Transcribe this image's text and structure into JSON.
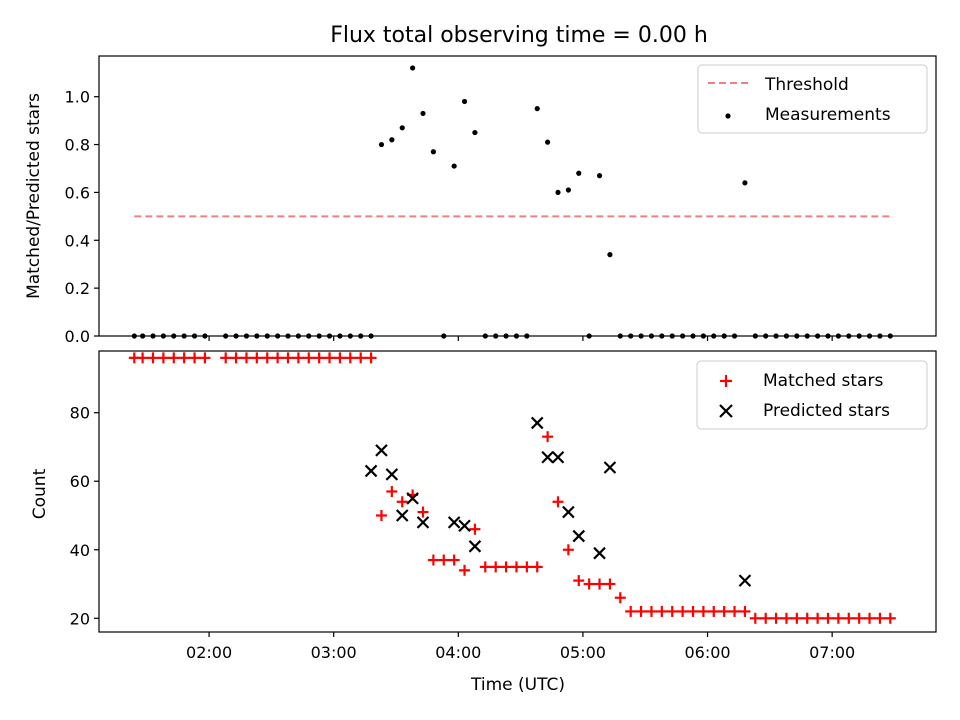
{
  "chart_data": [
    {
      "type": "scatter",
      "title": "Flux total observing time = 0.00 h",
      "xlabel": "",
      "ylabel": "Matched/Predicted stars",
      "ylim": [
        0,
        1.17
      ],
      "x_range": [
        "01:07",
        "07:50"
      ],
      "yticks": [
        "0.0",
        "0.2",
        "0.4",
        "0.6",
        "0.8",
        "1.0"
      ],
      "legend_position": "top-right",
      "threshold": {
        "name": "Threshold",
        "value": 0.5,
        "x_range": [
          "01:24",
          "07:28"
        ],
        "color": "#f08080",
        "style": "dashed"
      },
      "series": [
        {
          "name": "Measurements",
          "color": "#000000",
          "marker": "dot",
          "x": [
            "01:24",
            "01:28",
            "01:33",
            "01:38",
            "01:43",
            "01:48",
            "01:53",
            "01:58",
            "02:08",
            "02:13",
            "02:18",
            "02:23",
            "02:28",
            "02:33",
            "02:38",
            "02:43",
            "02:48",
            "02:53",
            "02:58",
            "03:03",
            "03:08",
            "03:13",
            "03:18",
            "03:23",
            "03:28",
            "03:33",
            "03:38",
            "03:43",
            "03:48",
            "03:53",
            "03:58",
            "04:03",
            "04:08",
            "04:13",
            "04:18",
            "04:23",
            "04:28",
            "04:33",
            "04:38",
            "04:43",
            "04:48",
            "04:53",
            "04:58",
            "05:03",
            "05:08",
            "05:13",
            "05:18",
            "05:23",
            "05:28",
            "05:33",
            "05:38",
            "05:43",
            "05:48",
            "05:53",
            "05:58",
            "06:03",
            "06:08",
            "06:13",
            "06:18",
            "06:23",
            "06:28",
            "06:33",
            "06:38",
            "06:43",
            "06:48",
            "06:53",
            "06:58",
            "07:03",
            "07:08",
            "07:13",
            "07:18",
            "07:23",
            "07:28"
          ],
          "y": [
            0,
            0,
            0,
            0,
            0,
            0,
            0,
            0,
            0,
            0,
            0,
            0,
            0,
            0,
            0,
            0,
            0,
            0,
            0,
            0,
            0,
            0,
            0,
            0.8,
            0.82,
            0.87,
            1.12,
            0.93,
            0.77,
            0,
            0.71,
            0.98,
            0.85,
            0,
            0,
            0,
            0,
            0,
            0.95,
            0.81,
            0.6,
            0.61,
            0.68,
            0,
            0.67,
            0.34,
            0,
            0,
            0,
            0,
            0,
            0,
            0,
            0,
            0,
            0,
            0,
            0,
            0.64,
            0,
            0,
            0,
            0,
            0,
            0,
            0,
            0,
            0,
            0,
            0,
            0,
            0,
            0
          ]
        }
      ]
    },
    {
      "type": "scatter",
      "title": "",
      "xlabel": "Time (UTC)",
      "ylabel": "Count",
      "ylim": [
        16,
        98
      ],
      "x_range": [
        "01:07",
        "07:50"
      ],
      "yticks": [
        "20",
        "40",
        "60",
        "80"
      ],
      "xticks": [
        "02:00",
        "03:00",
        "04:00",
        "05:00",
        "06:00",
        "07:00"
      ],
      "legend_position": "top-right",
      "series": [
        {
          "name": "Matched stars",
          "color": "#ff0000",
          "marker": "plus",
          "x": [
            "01:24",
            "01:28",
            "01:33",
            "01:38",
            "01:43",
            "01:48",
            "01:53",
            "01:58",
            "02:08",
            "02:13",
            "02:18",
            "02:23",
            "02:28",
            "02:33",
            "02:38",
            "02:43",
            "02:48",
            "02:53",
            "02:58",
            "03:03",
            "03:08",
            "03:13",
            "03:18",
            "03:23",
            "03:28",
            "03:33",
            "03:38",
            "03:43",
            "03:48",
            "03:53",
            "03:58",
            "04:03",
            "04:08",
            "04:13",
            "04:18",
            "04:23",
            "04:28",
            "04:33",
            "04:38",
            "04:43",
            "04:48",
            "04:53",
            "04:58",
            "05:03",
            "05:08",
            "05:13",
            "05:18",
            "05:23",
            "05:28",
            "05:33",
            "05:38",
            "05:43",
            "05:48",
            "05:53",
            "05:58",
            "06:03",
            "06:08",
            "06:13",
            "06:18",
            "06:23",
            "06:28",
            "06:33",
            "06:38",
            "06:43",
            "06:48",
            "06:53",
            "06:58",
            "07:03",
            "07:08",
            "07:13",
            "07:18",
            "07:23",
            "07:28"
          ],
          "y": [
            96,
            96,
            96,
            96,
            96,
            96,
            96,
            96,
            96,
            96,
            96,
            96,
            96,
            96,
            96,
            96,
            96,
            96,
            96,
            96,
            96,
            96,
            96,
            50,
            57,
            54,
            56,
            51,
            37,
            37,
            37,
            34,
            46,
            35,
            35,
            35,
            35,
            35,
            35,
            73,
            54,
            40,
            31,
            30,
            30,
            30,
            26,
            22,
            22,
            22,
            22,
            22,
            22,
            22,
            22,
            22,
            22,
            22,
            22,
            20,
            20,
            20,
            20,
            20,
            20,
            20,
            20,
            20,
            20,
            20,
            20,
            20,
            20
          ]
        },
        {
          "name": "Predicted stars",
          "color": "#000000",
          "marker": "x",
          "x": [
            "03:18",
            "03:23",
            "03:28",
            "03:33",
            "03:38",
            "03:43",
            "03:58",
            "04:03",
            "04:08",
            "04:38",
            "04:43",
            "04:48",
            "04:53",
            "04:58",
            "05:08",
            "05:13",
            "06:18"
          ],
          "y": [
            63,
            69,
            62,
            50,
            55,
            48,
            48,
            47,
            41,
            77,
            67,
            67,
            51,
            44,
            39,
            64,
            31
          ]
        }
      ]
    }
  ]
}
